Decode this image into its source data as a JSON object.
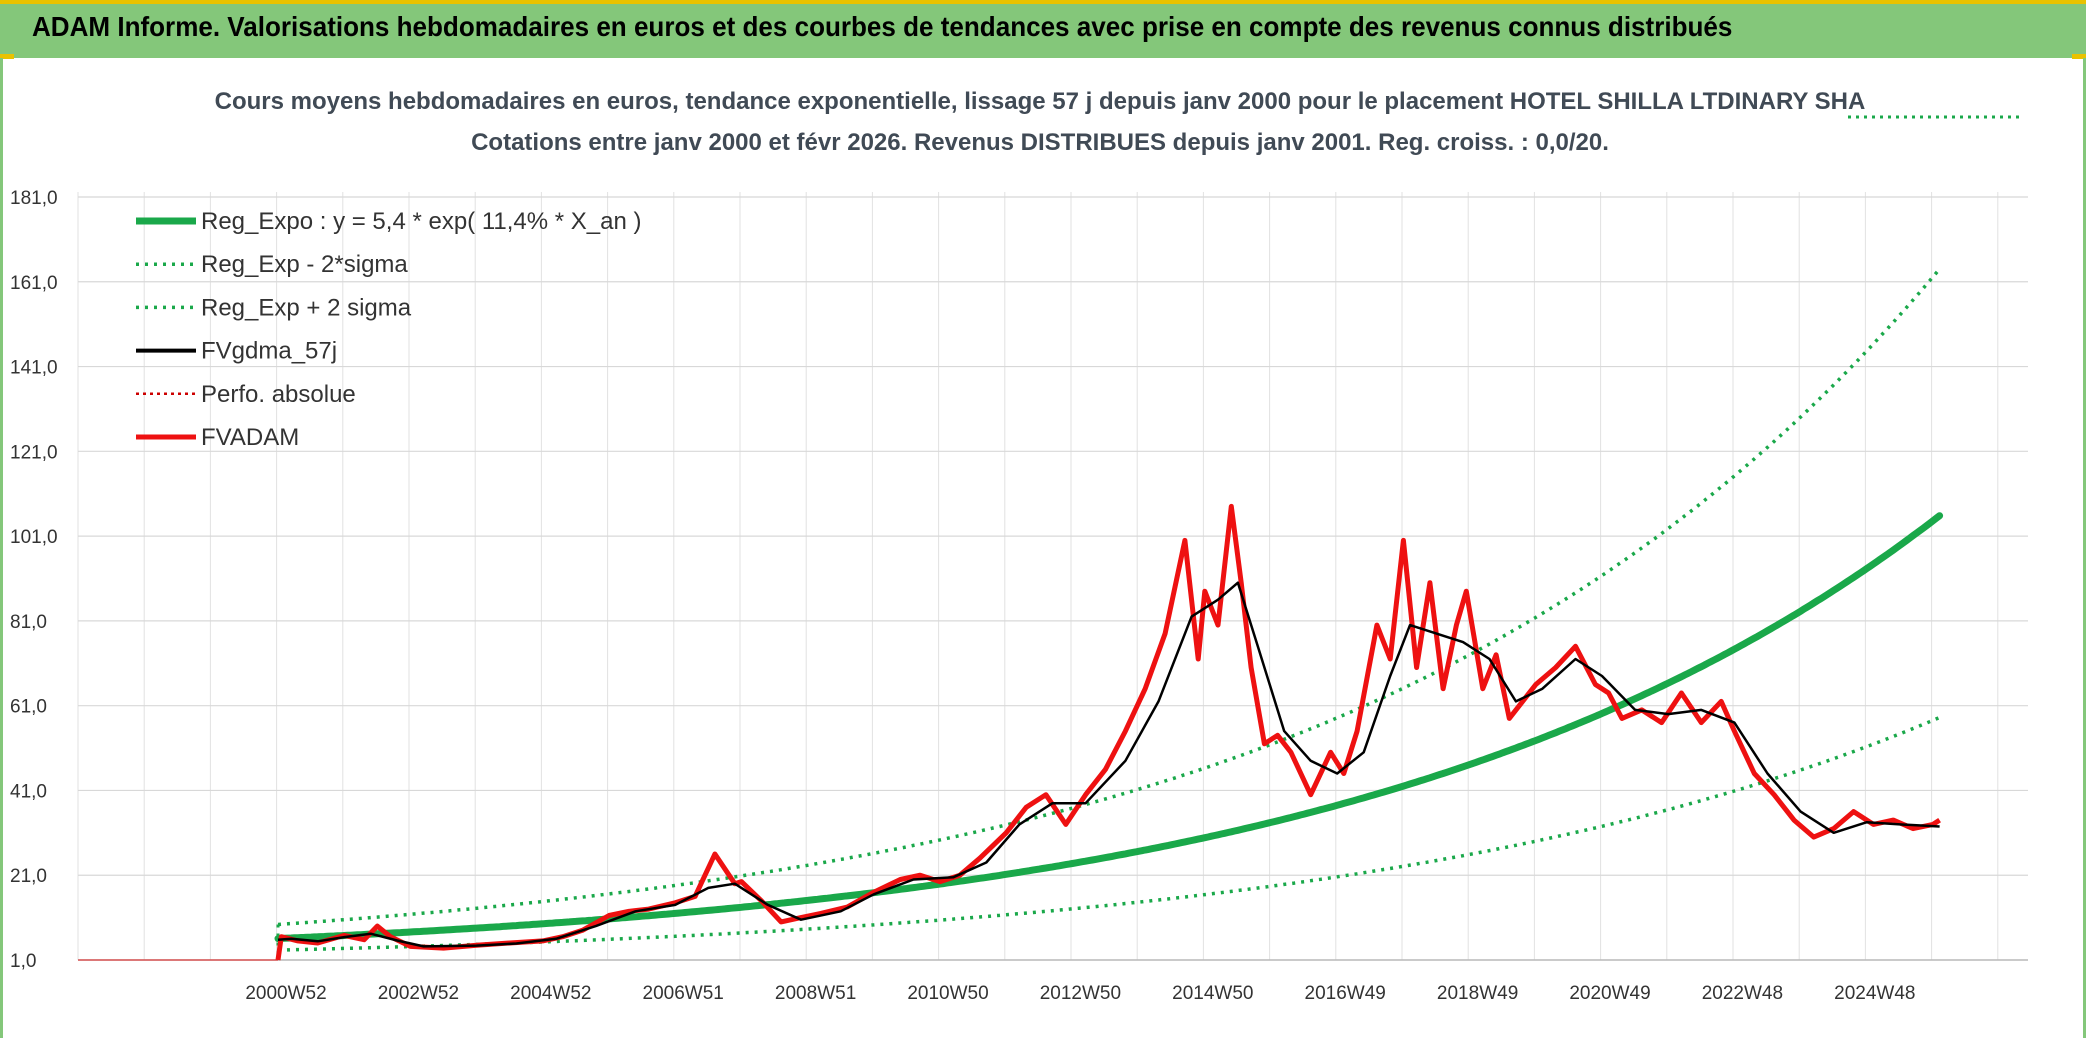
{
  "header": {
    "title": "ADAM Informe. Valorisations hebdomadaires en euros et des courbes de tendances avec prise en compte des revenus connus distribués"
  },
  "colors": {
    "banner": "#84c77a",
    "accent": "#e9c200",
    "trend": "#1aa84a",
    "price": "#ee1111",
    "smooth": "#000000",
    "perf": "#cc0000"
  },
  "chart_data": {
    "type": "line",
    "title": "Cours moyens hebdomadaires en euros, tendance exponentielle, lissage 57 j depuis janv 2000 pour le placement HOTEL SHILLA LTDINARY SHA",
    "subtitle": "Cotations entre janv 2000 et févr 2026. Revenus DISTRIBUES depuis janv 2001. Reg. croiss. : 0,0/20.",
    "xlabel": "",
    "ylabel": "",
    "y_ticks": [
      "1,0",
      "21,0",
      "41,0",
      "61,0",
      "81,0",
      "101,0",
      "121,0",
      "141,0",
      "161,0",
      "181,0"
    ],
    "ylim": [
      1,
      181
    ],
    "x_ticks": [
      "2000W52",
      "2002W52",
      "2004W52",
      "2006W51",
      "2008W51",
      "2010W50",
      "2012W50",
      "2014W50",
      "2016W49",
      "2018W49",
      "2020W49",
      "2022W48",
      "2024W48"
    ],
    "grid": true,
    "legend_position": "top-left",
    "legend": [
      "Reg_Expo : y = 5,4 * exp( 11,4% *  X_an )",
      "Reg_Exp - 2*sigma",
      "Reg_Exp + 2 sigma",
      "FVgdma_57j",
      "Perfo. absolue",
      "FVADAM"
    ],
    "regression": {
      "a": 5.4,
      "rate": 0.114,
      "lower_factor": 0.55,
      "upper_factor": 1.55,
      "x_start_year": 2001.0,
      "x_end_year": 2026.1
    },
    "series": [
      {
        "name": "FVADAM",
        "x": [
          2001.0,
          2001.05,
          2001.3,
          2001.6,
          2002.0,
          2002.3,
          2002.5,
          2002.7,
          2003.0,
          2003.5,
          2004.0,
          2004.5,
          2005.0,
          2005.3,
          2005.6,
          2006.0,
          2006.3,
          2006.6,
          2007.0,
          2007.3,
          2007.6,
          2007.9,
          2008.0,
          2008.3,
          2008.6,
          2008.9,
          2009.2,
          2009.6,
          2010.0,
          2010.4,
          2010.7,
          2011.0,
          2011.3,
          2011.6,
          2012.0,
          2012.3,
          2012.6,
          2012.9,
          2013.2,
          2013.5,
          2013.8,
          2014.1,
          2014.4,
          2014.7,
          2014.9,
          2015.0,
          2015.2,
          2015.4,
          2015.55,
          2015.7,
          2015.9,
          2016.1,
          2016.3,
          2016.6,
          2016.9,
          2017.1,
          2017.3,
          2017.6,
          2017.8,
          2018.0,
          2018.2,
          2018.4,
          2018.6,
          2018.8,
          2018.95,
          2019.2,
          2019.4,
          2019.6,
          2019.8,
          2020.0,
          2020.3,
          2020.6,
          2020.9,
          2021.1,
          2021.3,
          2021.6,
          2021.9,
          2022.2,
          2022.5,
          2022.8,
          2023.0,
          2023.3,
          2023.6,
          2023.9,
          2024.2,
          2024.5,
          2024.8,
          2025.1,
          2025.4,
          2025.7,
          2026.0,
          2026.1
        ],
        "values": [
          1.0,
          6.5,
          5.5,
          5.0,
          6.8,
          5.8,
          9.0,
          6.5,
          4.2,
          3.8,
          4.5,
          5.0,
          5.5,
          6.5,
          8.0,
          11.5,
          12.5,
          13.0,
          14.5,
          16.0,
          26.0,
          19.0,
          19.5,
          15.0,
          10.0,
          11.0,
          12.0,
          13.5,
          17.0,
          20.0,
          21.0,
          19.5,
          21.0,
          25.0,
          31.0,
          37.0,
          40.0,
          33.0,
          40.0,
          46.0,
          55.0,
          65.0,
          78.0,
          100.0,
          72.0,
          88.0,
          80.0,
          108.0,
          90.0,
          70.0,
          52.0,
          54.0,
          50.0,
          40.0,
          50.0,
          45.0,
          55.0,
          80.0,
          72.0,
          100.0,
          70.0,
          90.0,
          65.0,
          80.0,
          88.0,
          65.0,
          73.0,
          58.0,
          62.0,
          66.0,
          70.0,
          75.0,
          66.0,
          64.0,
          58.0,
          60.0,
          57.0,
          64.0,
          57.0,
          62.0,
          55.0,
          45.0,
          40.0,
          34.0,
          30.0,
          32.0,
          36.0,
          33.0,
          34.0,
          32.0,
          33.0,
          34.0
        ]
      },
      {
        "name": "FVgdma_57j",
        "x": [
          2001.0,
          2001.2,
          2001.6,
          2002.0,
          2002.4,
          2002.8,
          2003.2,
          2004.0,
          2004.6,
          2005.2,
          2005.8,
          2006.4,
          2007.0,
          2007.5,
          2007.9,
          2008.4,
          2008.9,
          2009.5,
          2010.0,
          2010.6,
          2011.2,
          2011.7,
          2012.2,
          2012.7,
          2013.2,
          2013.8,
          2014.3,
          2014.8,
          2015.2,
          2015.5,
          2015.8,
          2016.2,
          2016.6,
          2017.0,
          2017.4,
          2017.8,
          2018.1,
          2018.5,
          2018.9,
          2019.3,
          2019.7,
          2020.1,
          2020.6,
          2021.0,
          2021.5,
          2022.0,
          2022.5,
          2023.0,
          2023.5,
          2024.0,
          2024.5,
          2025.0,
          2025.5,
          2026.1
        ],
        "values": [
          5.8,
          6.0,
          5.4,
          6.4,
          7.2,
          5.6,
          4.2,
          4.4,
          4.9,
          6.0,
          9.0,
          12.5,
          14.0,
          18.0,
          19.0,
          14.0,
          10.5,
          12.5,
          16.5,
          20.0,
          20.5,
          24.0,
          33.0,
          38.0,
          38.0,
          48.0,
          62.0,
          82.0,
          86.0,
          90.0,
          75.0,
          55.0,
          48.0,
          45.0,
          50.0,
          68.0,
          80.0,
          78.0,
          76.0,
          72.0,
          62.0,
          65.0,
          72.0,
          68.0,
          60.0,
          59.0,
          60.0,
          57.0,
          45.0,
          36.0,
          31.0,
          33.5,
          33.0,
          32.5
        ]
      }
    ]
  }
}
